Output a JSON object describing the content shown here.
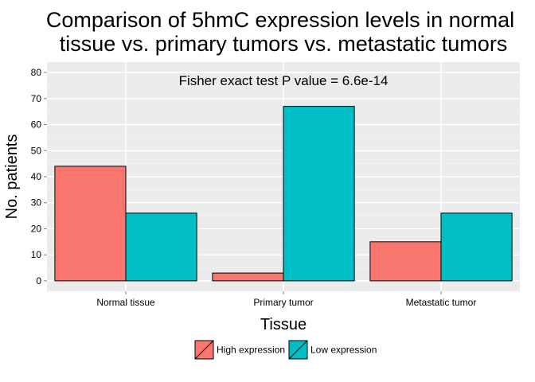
{
  "chart_data": {
    "type": "bar",
    "title_lines": [
      "Comparison of 5hmC expression levels in normal",
      "tissue vs. primary tumors vs. metastatic tumors"
    ],
    "xlabel": "Tissue",
    "ylabel": "No. patients",
    "categories": [
      "Normal tissue",
      "Primary tumor",
      "Metastatic tumor"
    ],
    "series": [
      {
        "name": "High expression",
        "color": "#F8766D",
        "values": [
          44,
          3,
          15
        ]
      },
      {
        "name": "Low expression",
        "color": "#00BFC4",
        "values": [
          26,
          67,
          26
        ]
      }
    ],
    "ylim": [
      -4,
      84
    ],
    "yticks": [
      0,
      10,
      20,
      30,
      40,
      50,
      60,
      70,
      80
    ],
    "annotation": "Fisher exact test P value = 6.6e-14",
    "grid": true,
    "legend_position": "bottom",
    "panel_background": "#EBEBEB"
  }
}
